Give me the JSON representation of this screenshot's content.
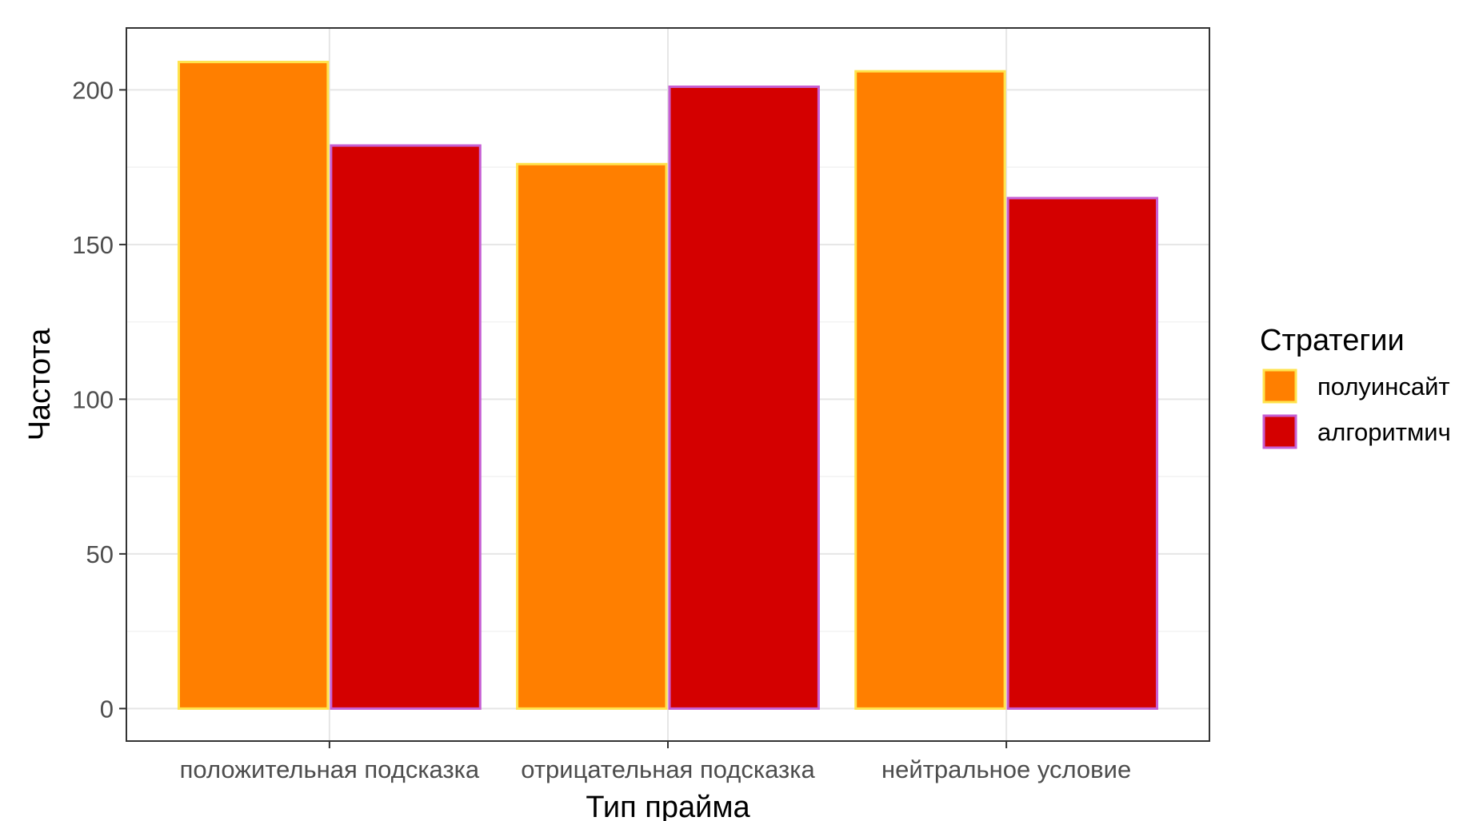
{
  "chart_data": {
    "type": "bar",
    "title": "",
    "xlabel": "Тип прайма",
    "ylabel": "Частота",
    "categories": [
      "положительная подсказка",
      "отрицательная подсказка",
      "нейтральное условие"
    ],
    "series": [
      {
        "name": "полуинсайт",
        "values": [
          209,
          176,
          206
        ],
        "color": "#FF7F00",
        "outline": "#FFE34D"
      },
      {
        "name": "алгоритмич",
        "values": [
          182,
          201,
          165
        ],
        "color": "#D40000",
        "outline": "#C65FD3"
      }
    ],
    "ylim": [
      -10.5,
      220
    ],
    "yticks": [
      0,
      50,
      100,
      150,
      200
    ],
    "grid": true,
    "legend": {
      "title": "Стратегии",
      "position": "right"
    },
    "colors": {
      "background": "#ffffff",
      "panel_border": "#333333",
      "grid_major": "#e6e6e6",
      "grid_minor": "#f2f2f2",
      "tick_text": "#4d4d4d"
    }
  }
}
